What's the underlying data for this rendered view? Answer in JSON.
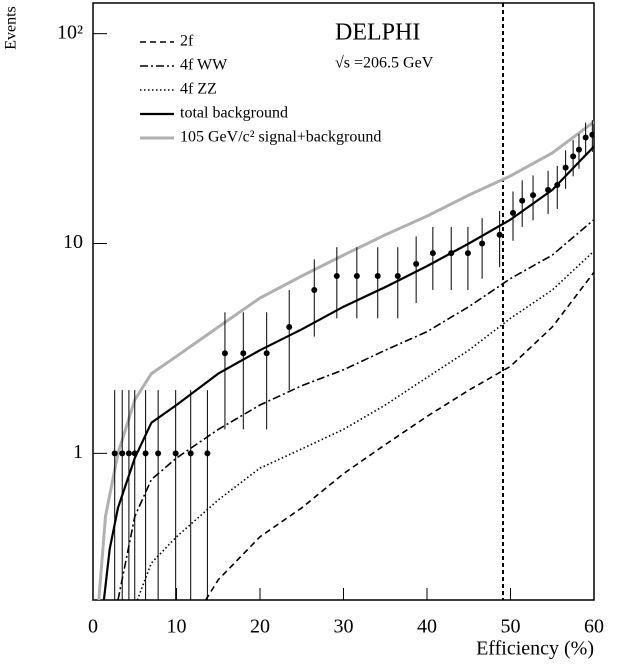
{
  "chart_data": {
    "type": "line",
    "title": "DELPHI",
    "subtitle": "√s =206.5 GeV",
    "x_label": "Efficiency (%)",
    "y_label": "Events",
    "xlim": [
      0,
      60
    ],
    "ylim": [
      0.2,
      140
    ],
    "log_y": true,
    "xticks": [
      0,
      10,
      20,
      30,
      40,
      50,
      60
    ],
    "yticks": [
      1,
      10,
      {
        "value": 100,
        "label": "10²"
      }
    ],
    "legend": "upper left",
    "cut_x": 49.1,
    "series": [
      {
        "name": "2f",
        "color": "#000000",
        "style": "dashed",
        "x": [
          13.5,
          15,
          20,
          25,
          30,
          35,
          40,
          45,
          50,
          55,
          60
        ],
        "values": [
          0.2,
          0.25,
          0.4,
          0.55,
          0.8,
          1.1,
          1.5,
          2.0,
          2.6,
          4.0,
          7.3
        ]
      },
      {
        "name": "4f WW",
        "color": "#000000",
        "style": "dashdot",
        "x": [
          3,
          5,
          7,
          10,
          15,
          20,
          25,
          30,
          35,
          40,
          45,
          50,
          55,
          60
        ],
        "values": [
          0.2,
          0.5,
          0.75,
          0.95,
          1.3,
          1.7,
          2.1,
          2.5,
          3.1,
          3.8,
          5,
          6.8,
          8.8,
          13
        ]
      },
      {
        "name": "4f ZZ",
        "color": "#000000",
        "style": "dotted",
        "x": [
          5.3,
          7,
          10,
          15,
          20,
          25,
          30,
          35,
          40,
          45,
          50,
          55,
          60
        ],
        "values": [
          0.2,
          0.3,
          0.4,
          0.6,
          0.85,
          1.05,
          1.3,
          1.7,
          2.3,
          3.1,
          4.4,
          6.0,
          9.2
        ]
      },
      {
        "name": "total background",
        "color": "#000000",
        "style": "solid",
        "x": [
          1.3,
          2,
          3,
          5,
          7,
          10,
          15,
          20,
          25,
          30,
          35,
          40,
          45,
          50,
          55,
          58,
          60
        ],
        "values": [
          0.2,
          0.35,
          0.55,
          0.95,
          1.4,
          1.7,
          2.4,
          3.1,
          3.9,
          5,
          6.2,
          7.8,
          10,
          13,
          18,
          24,
          29
        ]
      },
      {
        "name": "105 GeV/c² signal+background",
        "color": "#b0b0b0",
        "style": "solid",
        "x": [
          0.7,
          1.5,
          3,
          5,
          7,
          10,
          15,
          20,
          25,
          30,
          35,
          40,
          45,
          50,
          55,
          60
        ],
        "values": [
          0.2,
          0.5,
          1.0,
          1.8,
          2.4,
          2.9,
          4.0,
          5.5,
          7.0,
          8.8,
          11,
          13.5,
          17,
          21,
          27,
          38
        ]
      }
    ],
    "data_points": {
      "x": [
        2.6,
        3.5,
        4.3,
        5.0,
        6.3,
        7.8,
        9.9,
        11.7,
        13.7,
        15.8,
        18.0,
        20.8,
        23.5,
        26.5,
        29.2,
        31.6,
        34.1,
        36.5,
        38.7,
        40.7,
        42.9,
        44.9,
        46.6,
        48.7,
        50.3,
        51.4,
        52.7,
        54.5,
        55.6,
        56.6,
        57.5,
        58.2,
        59.0,
        59.8
      ],
      "values": [
        1,
        1,
        1,
        1,
        1,
        1,
        1,
        1,
        1,
        3,
        3,
        3,
        4,
        6,
        7,
        7,
        7,
        7,
        8,
        9,
        9,
        9,
        10,
        11,
        14,
        16,
        17,
        18,
        19,
        23,
        26,
        28,
        32,
        33
      ],
      "errors": [
        1,
        1,
        1,
        1,
        1,
        1,
        1,
        1,
        1,
        1.7,
        1.7,
        1.7,
        2,
        2.4,
        2.6,
        2.6,
        2.6,
        2.6,
        2.8,
        3,
        3,
        3,
        3.2,
        3.3,
        3.7,
        4,
        4.1,
        4.2,
        4.4,
        4.8,
        5.1,
        5.3,
        5.7,
        5.7
      ]
    }
  }
}
